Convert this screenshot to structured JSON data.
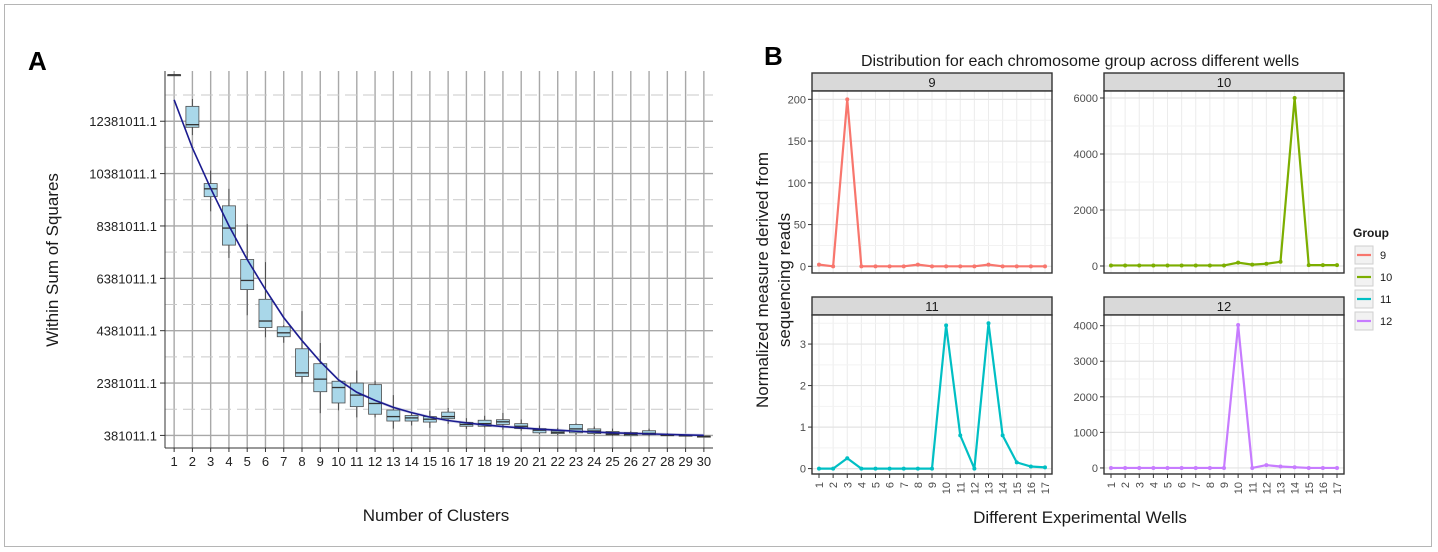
{
  "chart_data": [
    {
      "type": "box",
      "panel_label": "A",
      "title": "",
      "xlabel": "Number of Clusters",
      "ylabel": "Within Sum of Squares",
      "categories": [
        "1",
        "2",
        "3",
        "4",
        "5",
        "6",
        "7",
        "8",
        "9",
        "10",
        "11",
        "12",
        "13",
        "14",
        "15",
        "16",
        "17",
        "18",
        "19",
        "20",
        "21",
        "22",
        "23",
        "24",
        "25",
        "26",
        "27",
        "28",
        "29",
        "30"
      ],
      "y_tick_labels": [
        "381011.1",
        "2381011.1",
        "4381011.1",
        "6381011.1",
        "8381011.1",
        "10381011.1",
        "12381011.1"
      ],
      "y_ticks": [
        381011.1,
        2381011.1,
        4381011.1,
        6381011.1,
        8381011.1,
        10381011.1,
        12381011.1
      ],
      "ylim": [
        -100000,
        14300000
      ],
      "grid": true,
      "boxes": [
        {
          "x": 1,
          "min": 14155000,
          "q1": 14155000,
          "median": 14155000,
          "q3": 14155000,
          "max": 14155000
        },
        {
          "x": 2,
          "min": 11850000,
          "q1": 12150000,
          "median": 12250000,
          "q3": 12950000,
          "max": 13230000
        },
        {
          "x": 3,
          "min": 8940000,
          "q1": 9500000,
          "median": 9800000,
          "q3": 10000000,
          "max": 10500000
        },
        {
          "x": 4,
          "min": 7160000,
          "q1": 7650000,
          "median": 8300000,
          "q3": 9150000,
          "max": 9800000
        },
        {
          "x": 5,
          "min": 4970000,
          "q1": 5950000,
          "median": 6300000,
          "q3": 7100000,
          "max": 8450000
        },
        {
          "x": 6,
          "min": 4130000,
          "q1": 4500000,
          "median": 4750000,
          "q3": 5580000,
          "max": 7000000
        },
        {
          "x": 7,
          "min": 3920000,
          "q1": 4150000,
          "median": 4300000,
          "q3": 4530000,
          "max": 4590000
        },
        {
          "x": 8,
          "min": 2360000,
          "q1": 2630000,
          "median": 2770000,
          "q3": 3690000,
          "max": 5130000
        },
        {
          "x": 9,
          "min": 1230000,
          "q1": 2050000,
          "median": 2530000,
          "q3": 3120000,
          "max": 3910000
        },
        {
          "x": 10,
          "min": 1340000,
          "q1": 1620000,
          "median": 2210000,
          "q3": 2450000,
          "max": 2530000
        },
        {
          "x": 11,
          "min": 1070000,
          "q1": 1480000,
          "median": 1920000,
          "q3": 2380000,
          "max": 2860000
        },
        {
          "x": 12,
          "min": 1070000,
          "q1": 1190000,
          "median": 1600000,
          "q3": 2320000,
          "max": 2470000
        },
        {
          "x": 13,
          "min": 640000,
          "q1": 930000,
          "median": 1100000,
          "q3": 1350000,
          "max": 1920000
        },
        {
          "x": 14,
          "min": 760000,
          "q1": 930000,
          "median": 1050000,
          "q3": 1140000,
          "max": 1270000
        },
        {
          "x": 15,
          "min": 670000,
          "q1": 890000,
          "median": 1000000,
          "q3": 1100000,
          "max": 1320000
        },
        {
          "x": 16,
          "min": 820000,
          "q1": 1020000,
          "median": 1100000,
          "q3": 1270000,
          "max": 1430000
        },
        {
          "x": 17,
          "min": 630000,
          "q1": 730000,
          "median": 800000,
          "q3": 880000,
          "max": 1040000
        },
        {
          "x": 18,
          "min": 690000,
          "q1": 730000,
          "median": 830000,
          "q3": 960000,
          "max": 1130000
        },
        {
          "x": 19,
          "min": 600000,
          "q1": 800000,
          "median": 900000,
          "q3": 980000,
          "max": 1240000
        },
        {
          "x": 20,
          "min": 560000,
          "q1": 640000,
          "median": 730000,
          "q3": 830000,
          "max": 990000
        },
        {
          "x": 21,
          "min": 440000,
          "q1": 480000,
          "median": 580000,
          "q3": 640000,
          "max": 760000
        },
        {
          "x": 22,
          "min": 380000,
          "q1": 450000,
          "median": 500000,
          "q3": 560000,
          "max": 670000
        },
        {
          "x": 23,
          "min": 400000,
          "q1": 480000,
          "median": 630000,
          "q3": 800000,
          "max": 840000
        },
        {
          "x": 24,
          "min": 380000,
          "q1": 450000,
          "median": 550000,
          "q3": 630000,
          "max": 720000
        },
        {
          "x": 25,
          "min": 360000,
          "q1": 400000,
          "median": 430000,
          "q3": 530000,
          "max": 640000
        },
        {
          "x": 26,
          "min": 350000,
          "q1": 370000,
          "median": 420000,
          "q3": 490000,
          "max": 540000
        },
        {
          "x": 27,
          "min": 350000,
          "q1": 410000,
          "median": 460000,
          "q3": 560000,
          "max": 640000
        },
        {
          "x": 28,
          "min": 360000,
          "q1": 370000,
          "median": 380000,
          "q3": 410000,
          "max": 470000
        },
        {
          "x": 29,
          "min": 350000,
          "q1": 360000,
          "median": 370000,
          "q3": 390000,
          "max": 400000
        },
        {
          "x": 30,
          "min": 340000,
          "q1": 340000,
          "median": 345000,
          "q3": 350000,
          "max": 360000
        }
      ],
      "fit_line": {
        "x": [
          1,
          2,
          3,
          4,
          5,
          6,
          7,
          8,
          9,
          10,
          11,
          12,
          13,
          14,
          15,
          16,
          17,
          18,
          19,
          20,
          21,
          22,
          23,
          24,
          25,
          26,
          27,
          28,
          29,
          30
        ],
        "y": [
          13200000,
          11360000,
          9820000,
          8390000,
          7100000,
          5950000,
          4880000,
          4000000,
          3200000,
          2500000,
          2030000,
          1720000,
          1450000,
          1250000,
          1080000,
          950000,
          860000,
          780000,
          720000,
          670000,
          620000,
          580000,
          540000,
          510000,
          480000,
          460000,
          440000,
          420000,
          400000,
          385000
        ]
      },
      "colors": {
        "box_fill": "#a9d7e9",
        "box_stroke": "#4d4d4d",
        "fit_line": "#1b1b8f",
        "fit_band": "#c8cbe6"
      }
    },
    {
      "type": "line",
      "panel_label": "B",
      "title": "Distribution for each chromosome group across different wells",
      "xlabel": "Different Experimental Wells",
      "ylabel_lines": [
        "Normalized measure derived from",
        "sequencing reads"
      ],
      "x": [
        1,
        2,
        3,
        4,
        5,
        6,
        7,
        8,
        9,
        10,
        11,
        12,
        13,
        14,
        15,
        16,
        17
      ],
      "legend": {
        "title": "Group",
        "position": "right"
      },
      "panels": [
        {
          "strip": "9",
          "color": "#f8766d",
          "ylim": [
            -8,
            210
          ],
          "y_ticks": [
            0,
            50,
            100,
            150,
            200
          ],
          "values": [
            2,
            0,
            200,
            0,
            0,
            0,
            0,
            2,
            0,
            0,
            0,
            0,
            2,
            0,
            0,
            0,
            0
          ]
        },
        {
          "strip": "10",
          "color": "#7cae00",
          "ylim": [
            -250,
            6250
          ],
          "y_ticks": [
            0,
            2000,
            4000,
            6000
          ],
          "values": [
            20,
            20,
            20,
            20,
            20,
            20,
            20,
            20,
            20,
            120,
            50,
            80,
            150,
            6000,
            30,
            30,
            30
          ]
        },
        {
          "strip": "11",
          "color": "#00bfc4",
          "ylim": [
            -0.13,
            3.7
          ],
          "y_ticks": [
            0,
            1,
            2,
            3
          ],
          "values": [
            0,
            0,
            0.25,
            0,
            0,
            0,
            0,
            0,
            0,
            3.45,
            0.8,
            0,
            3.5,
            0.8,
            0.15,
            0.05,
            0.03
          ]
        },
        {
          "strip": "12",
          "color": "#c77cff",
          "ylim": [
            -170,
            4300
          ],
          "y_ticks": [
            0,
            1000,
            2000,
            3000,
            4000
          ],
          "values": [
            0,
            0,
            0,
            0,
            0,
            0,
            0,
            0,
            0,
            4020,
            0,
            80,
            40,
            20,
            0,
            0,
            0
          ]
        }
      ]
    }
  ]
}
